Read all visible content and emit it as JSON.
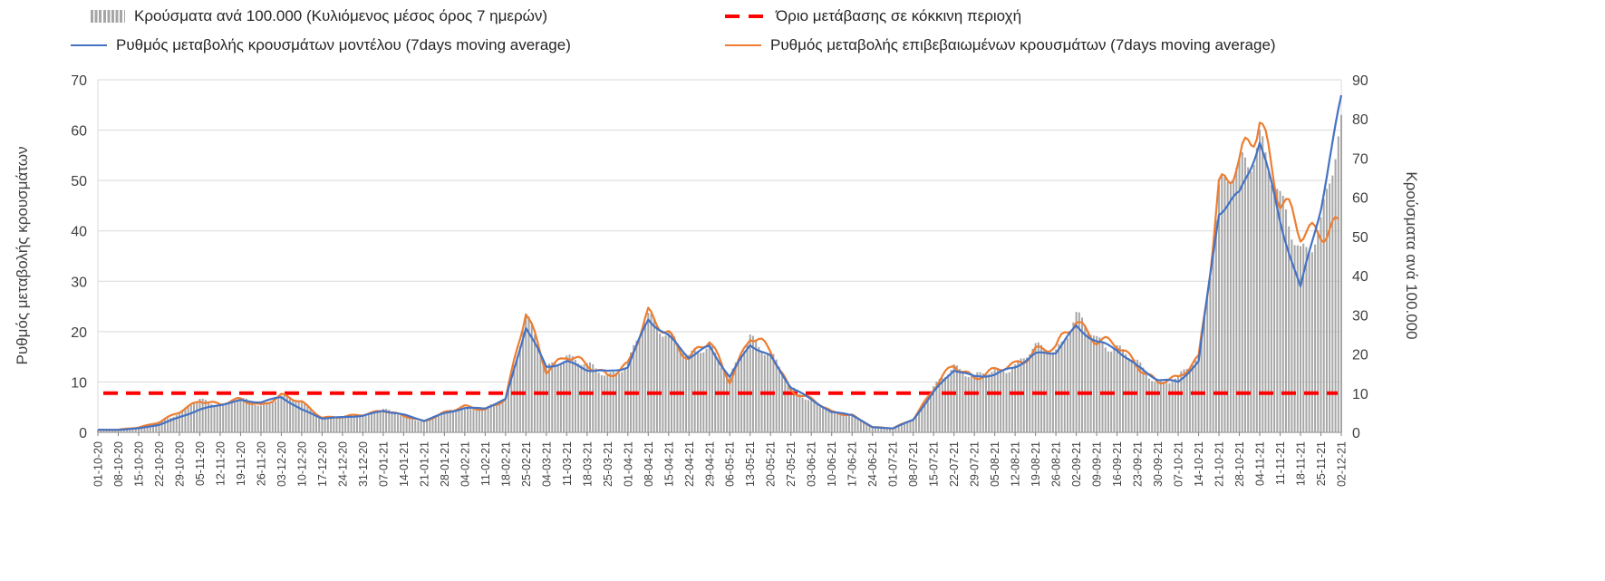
{
  "legend": {
    "bars_label": "Κρούσματα ανά 100.000 (Κυλιόμενος μέσος όρος 7 ημερών)",
    "threshold_label": "Όριο μετάβασης σε κόκκινη περιοχή",
    "model_label": "Ρυθμός μεταβολής κρουσμάτων μοντέλου (7days moving average)",
    "confirmed_label": "Ρυθμός μεταβολής επιβεβαιωμένων κρουσμάτων (7days moving average)"
  },
  "axes": {
    "left_label": "Ρυθμός μεταβολής κρουσμάτων",
    "right_label": "Κρούσματα ανά 100.000",
    "left_ticks": [
      0,
      10,
      20,
      30,
      40,
      50,
      60,
      70
    ],
    "right_ticks": [
      0,
      10,
      20,
      30,
      40,
      50,
      60,
      70,
      80,
      90
    ],
    "left_max": 70,
    "right_max": 90
  },
  "colors": {
    "bars": "#a6a6a6",
    "model_line": "#4472c4",
    "confirmed_line": "#ed7d31",
    "threshold_line": "#ff0000",
    "grid": "#d9d9d9",
    "axis_line": "#808080",
    "tick_text": "#404040"
  },
  "chart_data": {
    "type": "line+bar combo, dual y-axis",
    "x_weekly": [
      "01-10-20",
      "08-10-20",
      "15-10-20",
      "22-10-20",
      "29-10-20",
      "05-11-20",
      "12-11-20",
      "19-11-20",
      "26-11-20",
      "03-12-20",
      "10-12-20",
      "17-12-20",
      "24-12-20",
      "31-12-20",
      "07-01-21",
      "14-01-21",
      "21-01-21",
      "28-01-21",
      "04-02-21",
      "11-02-21",
      "18-02-21",
      "25-02-21",
      "04-03-21",
      "11-03-21",
      "18-03-21",
      "25-03-21",
      "01-04-21",
      "08-04-21",
      "15-04-21",
      "22-04-21",
      "29-04-21",
      "06-05-21",
      "13-05-21",
      "20-05-21",
      "27-05-21",
      "03-06-21",
      "10-06-21",
      "17-06-21",
      "24-06-21",
      "01-07-21",
      "08-07-21",
      "15-07-21",
      "22-07-21",
      "29-07-21",
      "05-08-21",
      "12-08-21",
      "19-08-21",
      "26-08-21",
      "02-09-21",
      "09-09-21",
      "16-09-21",
      "23-09-21",
      "30-09-21",
      "07-10-21",
      "14-10-21",
      "21-10-21",
      "28-10-21",
      "04-11-21",
      "11-11-21",
      "18-11-21",
      "25-11-21",
      "02-12-21"
    ],
    "series": [
      {
        "name": "cases_per_100k_7day_bars",
        "type": "bar",
        "axis": "right",
        "values": [
          0.6,
          0.7,
          1.3,
          2.6,
          5,
          8.3,
          7,
          8.3,
          7,
          9.2,
          7.7,
          3.9,
          3.9,
          4.5,
          5.8,
          4.1,
          2.8,
          5.1,
          6.4,
          5.8,
          8.7,
          30,
          16,
          20,
          16.7,
          14.8,
          17.3,
          29.5,
          25.7,
          18.6,
          23.1,
          13.5,
          24.4,
          20.5,
          11,
          8.3,
          5.1,
          4.5,
          1.3,
          1,
          3.5,
          11,
          17.3,
          14.1,
          15.4,
          17.3,
          21.2,
          21.2,
          29,
          23.8,
          21.8,
          17.3,
          12.8,
          13.5,
          19.3,
          61,
          66,
          77,
          57,
          47,
          52,
          77
        ]
      },
      {
        "name": "model_rate_of_change",
        "type": "line",
        "axis": "left",
        "values": [
          0.5,
          0.5,
          0.8,
          1.5,
          3,
          4.5,
          5.5,
          6.3,
          6,
          7,
          4.5,
          2.8,
          3,
          3.3,
          4.3,
          3.5,
          2.3,
          3.8,
          4.8,
          4.8,
          6.5,
          21,
          13,
          14,
          12.5,
          12,
          13,
          22.5,
          19,
          15,
          17,
          11,
          17.5,
          15,
          9,
          6.5,
          4,
          3.5,
          1,
          0.8,
          2.5,
          8,
          12.5,
          11,
          11.5,
          13,
          15.5,
          16,
          21,
          18,
          16.5,
          13,
          10.5,
          10,
          14,
          44,
          47,
          58,
          42,
          28.5,
          45,
          66
        ]
      },
      {
        "name": "confirmed_rate_of_change",
        "type": "line",
        "axis": "left",
        "values": [
          0.5,
          0.5,
          1,
          2,
          4,
          6.5,
          5.5,
          6.5,
          5.5,
          7.2,
          6,
          3,
          3,
          3.5,
          4.5,
          3.2,
          2.2,
          4,
          5,
          4.5,
          6.8,
          23.5,
          12.5,
          15.5,
          13,
          11.5,
          13.5,
          23,
          20,
          14.5,
          18,
          10.5,
          19,
          16,
          8.5,
          6.5,
          4,
          3.5,
          1,
          0.8,
          2.7,
          8.5,
          13.5,
          11,
          12,
          13.5,
          16.5,
          16.5,
          22.5,
          18.5,
          17,
          13.5,
          10,
          10.5,
          15,
          48,
          52,
          64,
          46,
          39,
          41,
          null
        ]
      },
      {
        "name": "red_zone_threshold",
        "type": "dashed-horizontal-line",
        "axis": "right",
        "value": 10
      }
    ]
  }
}
